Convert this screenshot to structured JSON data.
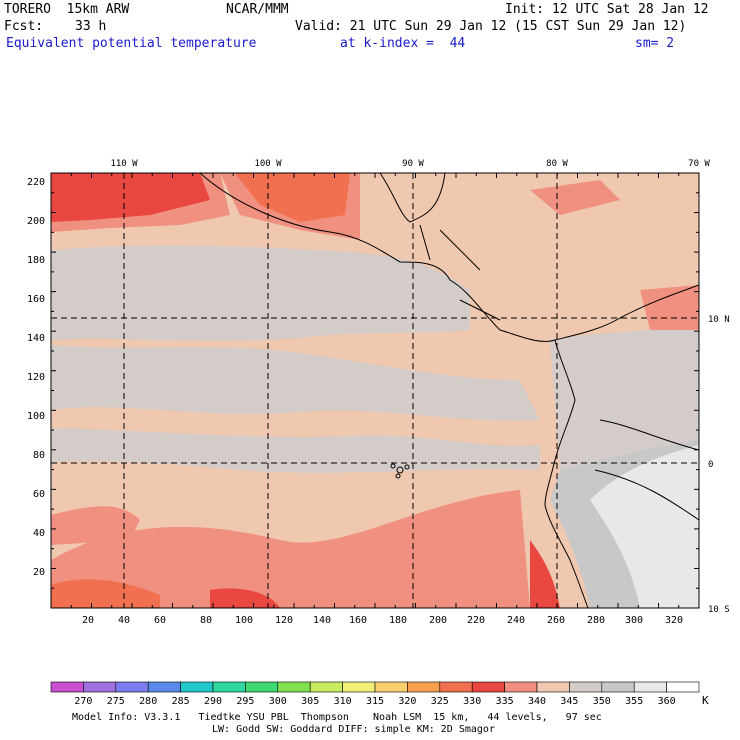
{
  "header": {
    "model": "TORERO  15km ARW",
    "org": "NCAR/MMM",
    "init": "Init: 12 UTC Sat 28 Jan 12",
    "fcst_label": "Fcst:",
    "fcst_value": "33 h",
    "valid": "Valid: 21 UTC Sun 29 Jan 12 (15 CST Sun 29 Jan 12)",
    "field": "Equivalent potential temperature",
    "level": "at k-index =  44",
    "smoothing": "sm= 2"
  },
  "map": {
    "lon_labels": [
      "110 W",
      "100 W",
      "90 W",
      "80 W",
      "70 W"
    ],
    "lat_labels": [
      "10 N",
      "0",
      "10 S"
    ],
    "y_ticks": [
      "220",
      "200",
      "180",
      "160",
      "140",
      "120",
      "100",
      "80",
      "60",
      "40",
      "20"
    ],
    "x_ticks": [
      "20",
      "40",
      "60",
      "80",
      "100",
      "120",
      "140",
      "160",
      "180",
      "200",
      "220",
      "240",
      "260",
      "280",
      "300",
      "320"
    ]
  },
  "colorbar": {
    "unit": "K",
    "labels": [
      "270",
      "275",
      "280",
      "285",
      "290",
      "295",
      "300",
      "305",
      "310",
      "315",
      "320",
      "325",
      "330",
      "335",
      "340",
      "345",
      "350",
      "355",
      "360"
    ],
    "colors": [
      "#c850d0",
      "#a070e0",
      "#7c7cf0",
      "#5a8ae8",
      "#20c8c8",
      "#30d8a0",
      "#40d870",
      "#80e050",
      "#c8ec60",
      "#f0f078",
      "#f8d070",
      "#f8a050",
      "#f07050",
      "#e84840",
      "#f09080",
      "#f0c8b0",
      "#d4ccc8",
      "#c8c8c8",
      "#e8e8e8",
      "#ffffff"
    ]
  },
  "footer": {
    "line1": "Model Info: V3.3.1   Tiedtke YSU PBL  Thompson    Noah LSM  15 km,   44 levels,   97 sec",
    "line2": "LW: Godd SW: Goddard DIFF: simple KM: 2D Smagor"
  }
}
